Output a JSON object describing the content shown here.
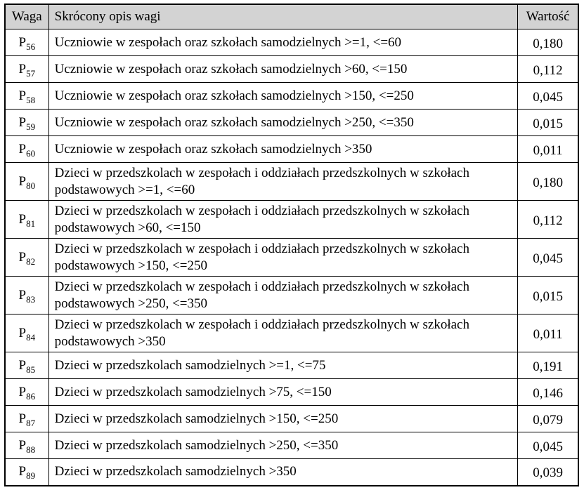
{
  "table": {
    "headers": {
      "weight": "Waga",
      "description": "Skrócony opis wagi",
      "value": "Wartość"
    },
    "colors": {
      "header_bg": "#d3d3d3",
      "border": "#000000",
      "text": "#000000",
      "page_bg": "#ffffff"
    },
    "rows": [
      {
        "id_base": "P",
        "id_sub": "56",
        "description": "Uczniowie w zespołach oraz szkołach samodzielnych >=1, <=60",
        "value": "0,180"
      },
      {
        "id_base": "P",
        "id_sub": "57",
        "description": "Uczniowie w zespołach oraz szkołach samodzielnych >60, <=150",
        "value": "0,112"
      },
      {
        "id_base": "P",
        "id_sub": "58",
        "description": "Uczniowie w zespołach oraz szkołach samodzielnych >150, <=250",
        "value": "0,045"
      },
      {
        "id_base": "P",
        "id_sub": "59",
        "description": "Uczniowie w zespołach oraz szkołach samodzielnych >250, <=350",
        "value": "0,015"
      },
      {
        "id_base": "P",
        "id_sub": "60",
        "description": "Uczniowie w zespołach oraz szkołach samodzielnych >350",
        "value": "0,011"
      },
      {
        "id_base": "P",
        "id_sub": "80",
        "description": "Dzieci w przedszkolach w zespołach i oddziałach przedszkolnych w szkołach podstawowych >=1, <=60",
        "value": "0,180"
      },
      {
        "id_base": "P",
        "id_sub": "81",
        "description": "Dzieci w przedszkolach w zespołach i oddziałach przedszkolnych w szkołach podstawowych >60, <=150",
        "value": "0,112"
      },
      {
        "id_base": "P",
        "id_sub": "82",
        "description": "Dzieci w przedszkolach w zespołach i oddziałach przedszkolnych w szkołach podstawowych >150, <=250",
        "value": "0,045"
      },
      {
        "id_base": "P",
        "id_sub": "83",
        "description": "Dzieci w przedszkolach w zespołach i oddziałach przedszkolnych w szkołach podstawowych >250, <=350",
        "value": "0,015"
      },
      {
        "id_base": "P",
        "id_sub": "84",
        "description": "Dzieci w przedszkolach w zespołach i oddziałach przedszkolnych w szkołach podstawowych >350",
        "value": "0,011"
      },
      {
        "id_base": "P",
        "id_sub": "85",
        "description": "Dzieci w przedszkolach samodzielnych >=1, <=75",
        "value": "0,191"
      },
      {
        "id_base": "P",
        "id_sub": "86",
        "description": "Dzieci w przedszkolach samodzielnych >75, <=150",
        "value": "0,146"
      },
      {
        "id_base": "P",
        "id_sub": "87",
        "description": "Dzieci w przedszkolach samodzielnych >150, <=250",
        "value": "0,079"
      },
      {
        "id_base": "P",
        "id_sub": "88",
        "description": "Dzieci w przedszkolach samodzielnych >250, <=350",
        "value": "0,045"
      },
      {
        "id_base": "P",
        "id_sub": "89",
        "description": "Dzieci w przedszkolach samodzielnych >350",
        "value": "0,039"
      }
    ]
  }
}
